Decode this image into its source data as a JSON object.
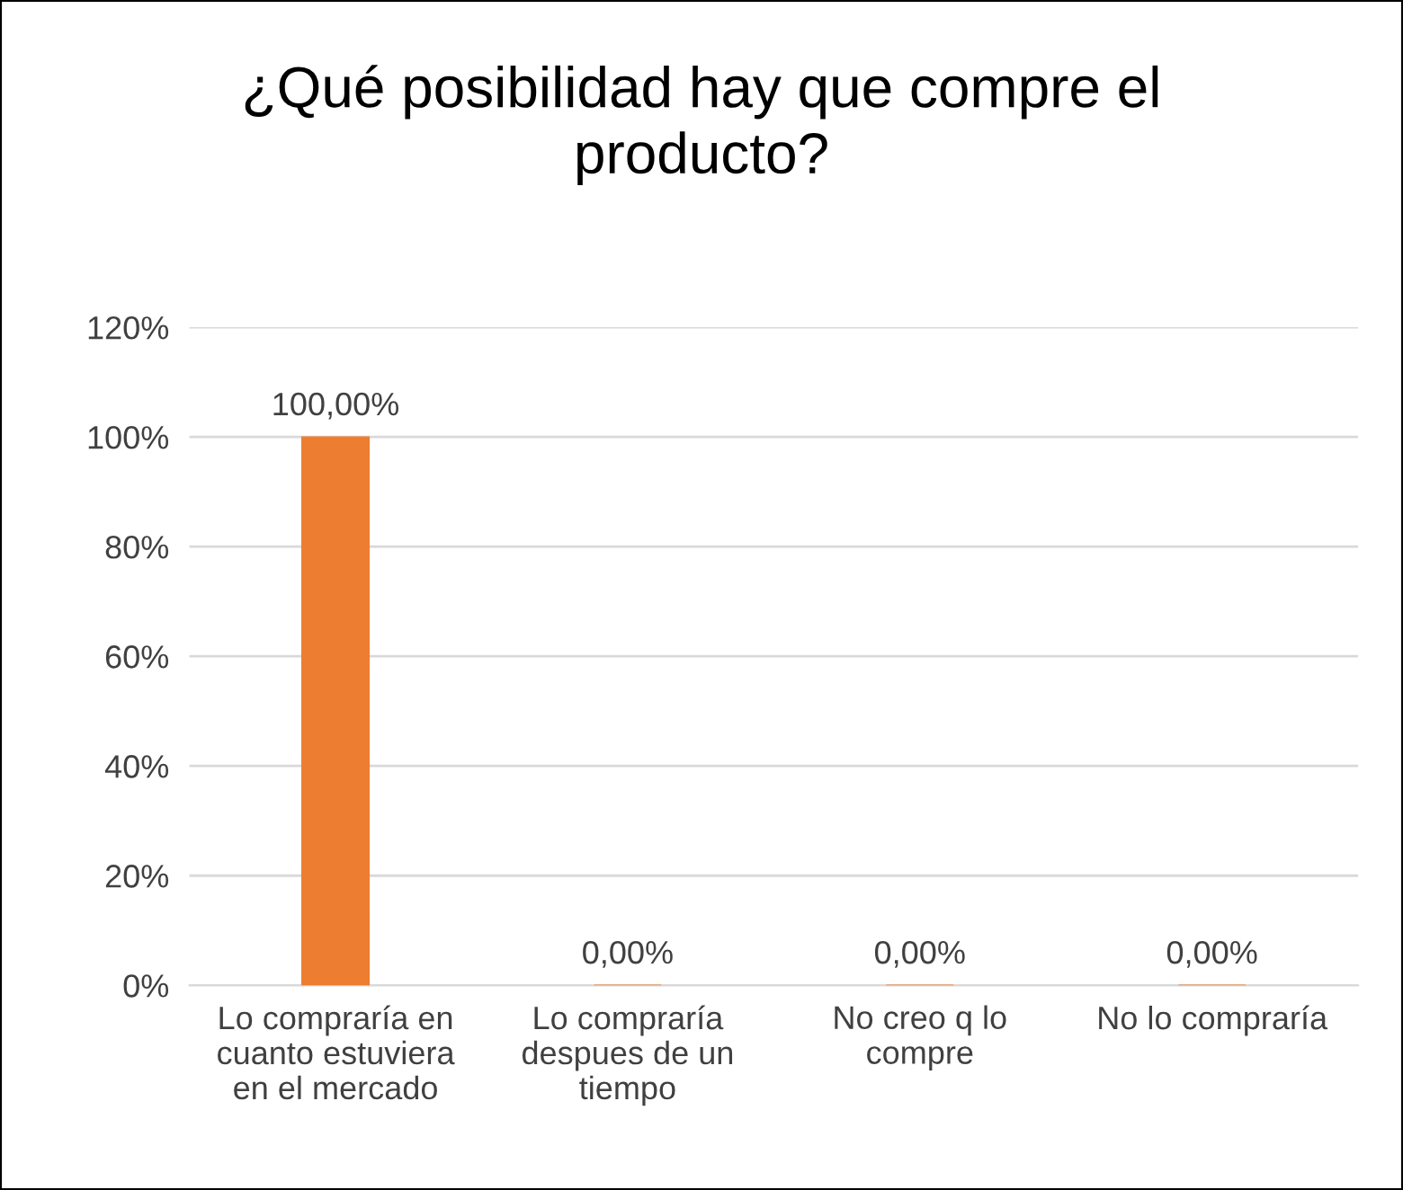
{
  "chart_data": {
    "type": "bar",
    "title": "¿Qué posibilidad hay que compre el\nproducto?",
    "categories": [
      "Lo compraría en\ncuanto estuviera\nen el mercado",
      "Lo compraría\ndespues de un\ntiempo",
      "No creo q lo\ncompre",
      "No lo compraría"
    ],
    "values": [
      100,
      0,
      0,
      0
    ],
    "value_labels": [
      "100,00%",
      "0,00%",
      "0,00%",
      "0,00%"
    ],
    "color": "#ed7d31",
    "ylim": [
      0,
      120
    ],
    "yticks": [
      {
        "value": 0,
        "label": "0%"
      },
      {
        "value": 20,
        "label": "20%"
      },
      {
        "value": 40,
        "label": "40%"
      },
      {
        "value": 60,
        "label": "60%"
      },
      {
        "value": 80,
        "label": "80%"
      },
      {
        "value": 100,
        "label": "100%"
      },
      {
        "value": 120,
        "label": "120%"
      }
    ],
    "grid": "y",
    "legend": false
  }
}
